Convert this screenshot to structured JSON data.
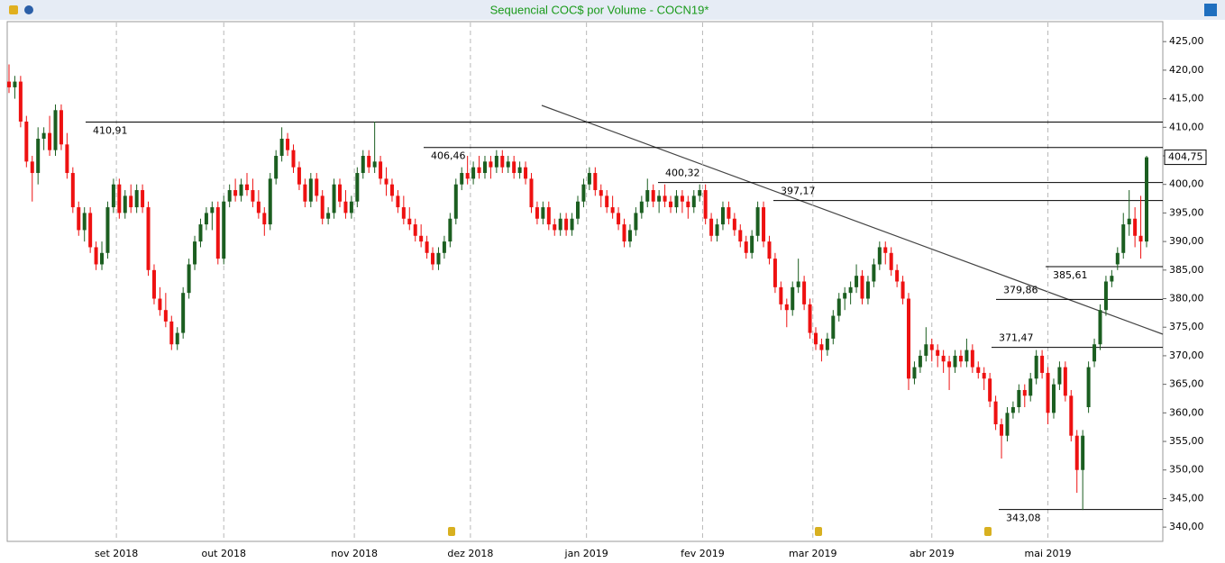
{
  "chart_data": {
    "type": "candlestick",
    "title": "Sequencial COC$ por Volume - COCN19*",
    "up_color": "#1b5e20",
    "down_color": "#ee1111",
    "ylim": [
      337.5,
      428.5
    ],
    "yticks": [
      {
        "value": 340,
        "label": "340,00"
      },
      {
        "value": 345,
        "label": "345,00"
      },
      {
        "value": 350,
        "label": "350,00"
      },
      {
        "value": 355,
        "label": "355,00"
      },
      {
        "value": 360,
        "label": "360,00"
      },
      {
        "value": 365,
        "label": "365,00"
      },
      {
        "value": 370,
        "label": "370,00"
      },
      {
        "value": 375,
        "label": "375,00"
      },
      {
        "value": 380,
        "label": "380,00"
      },
      {
        "value": 385,
        "label": "385,00"
      },
      {
        "value": 390,
        "label": "390,00"
      },
      {
        "value": 395,
        "label": "395,00"
      },
      {
        "value": 400,
        "label": "400,00"
      },
      {
        "value": 405,
        "label": "405,00"
      },
      {
        "value": 410,
        "label": "410,00"
      },
      {
        "value": 415,
        "label": "415,00"
      },
      {
        "value": 420,
        "label": "420,00"
      },
      {
        "value": 425,
        "label": "425,00"
      }
    ],
    "xticks": [
      {
        "value": 18.5,
        "label": "set 2018"
      },
      {
        "value": 37,
        "label": "out 2018"
      },
      {
        "value": 59.5,
        "label": "nov 2018"
      },
      {
        "value": 79.5,
        "label": "dez 2018"
      },
      {
        "value": 99.5,
        "label": "jan 2019"
      },
      {
        "value": 119.5,
        "label": "fev 2019"
      },
      {
        "value": 138.5,
        "label": "mar 2019"
      },
      {
        "value": 159,
        "label": "abr 2019"
      },
      {
        "value": 179,
        "label": "mai 2019"
      }
    ],
    "last_price": {
      "value": 404.75,
      "label": "404,75"
    },
    "levels": [
      {
        "value": 410.91,
        "label": "410,91"
      },
      {
        "value": 406.46,
        "label": "406,46"
      },
      {
        "value": 400.32,
        "label": "400,32"
      },
      {
        "value": 397.17,
        "label": "397,17"
      },
      {
        "value": 385.61,
        "label": "385,61"
      },
      {
        "value": 379.86,
        "label": "379,86"
      },
      {
        "value": 371.47,
        "label": "371,47"
      },
      {
        "value": 343.08,
        "label": "343,08"
      }
    ],
    "candles": [
      [
        418,
        421,
        416,
        417
      ],
      [
        417,
        419,
        415,
        418
      ],
      [
        418,
        419,
        410,
        411
      ],
      [
        411,
        412,
        403,
        404
      ],
      [
        404,
        405,
        397,
        402
      ],
      [
        402,
        410,
        400,
        408
      ],
      [
        408,
        410,
        406,
        409
      ],
      [
        409,
        412,
        405,
        406
      ],
      [
        406,
        414,
        405,
        413
      ],
      [
        413,
        414,
        406,
        407
      ],
      [
        407,
        409,
        401,
        402
      ],
      [
        402,
        403,
        395,
        396
      ],
      [
        396,
        397,
        391,
        392
      ],
      [
        392,
        396,
        390,
        395
      ],
      [
        395,
        396,
        388,
        389
      ],
      [
        389,
        390,
        385,
        386
      ],
      [
        386,
        390,
        385,
        388
      ],
      [
        388,
        397,
        387,
        396
      ],
      [
        396,
        401,
        395,
        400
      ],
      [
        400,
        401,
        394,
        395
      ],
      [
        395,
        399,
        394,
        398
      ],
      [
        398,
        400,
        395,
        396
      ],
      [
        396,
        400,
        395,
        399
      ],
      [
        399,
        400,
        395,
        396
      ],
      [
        396,
        397,
        384,
        385
      ],
      [
        385,
        386,
        379,
        380
      ],
      [
        380,
        382,
        377,
        378
      ],
      [
        378,
        381,
        375,
        376
      ],
      [
        376,
        377,
        371,
        372
      ],
      [
        372,
        375,
        371,
        374
      ],
      [
        374,
        382,
        373,
        381
      ],
      [
        381,
        387,
        380,
        386
      ],
      [
        386,
        391,
        385,
        390
      ],
      [
        390,
        394,
        389,
        393
      ],
      [
        393,
        396,
        392,
        395
      ],
      [
        395,
        397,
        392,
        396
      ],
      [
        396,
        397,
        386,
        387
      ],
      [
        387,
        398,
        386,
        397
      ],
      [
        397,
        400,
        396,
        399
      ],
      [
        399,
        401,
        397,
        398
      ],
      [
        398,
        401,
        397,
        400
      ],
      [
        400,
        402,
        398,
        399
      ],
      [
        399,
        401,
        396,
        397
      ],
      [
        397,
        399,
        394,
        395
      ],
      [
        395,
        396,
        391,
        393
      ],
      [
        393,
        402,
        392,
        401
      ],
      [
        401,
        406,
        400,
        405
      ],
      [
        405,
        410,
        404,
        408
      ],
      [
        408,
        409,
        405,
        406
      ],
      [
        406,
        407,
        402,
        403
      ],
      [
        403,
        404,
        399,
        400
      ],
      [
        400,
        401,
        396,
        397
      ],
      [
        397,
        402,
        396,
        401
      ],
      [
        401,
        402,
        397,
        398
      ],
      [
        398,
        399,
        393,
        394
      ],
      [
        394,
        396,
        393,
        395
      ],
      [
        395,
        401,
        394,
        400
      ],
      [
        400,
        401,
        396,
        397
      ],
      [
        397,
        399,
        394,
        395
      ],
      [
        395,
        398,
        394,
        397
      ],
      [
        397,
        403,
        396,
        402
      ],
      [
        402,
        406,
        401,
        405
      ],
      [
        405,
        406,
        402,
        403
      ],
      [
        403,
        411,
        402,
        404
      ],
      [
        404,
        405,
        400,
        401
      ],
      [
        401,
        403,
        398,
        400
      ],
      [
        400,
        401,
        397,
        398
      ],
      [
        398,
        399,
        395,
        396
      ],
      [
        396,
        398,
        393,
        394
      ],
      [
        394,
        396,
        392,
        393
      ],
      [
        393,
        394,
        390,
        391
      ],
      [
        391,
        393,
        389,
        390
      ],
      [
        390,
        391,
        387,
        388
      ],
      [
        388,
        389,
        385,
        386
      ],
      [
        386,
        389,
        385,
        388
      ],
      [
        388,
        391,
        387,
        390
      ],
      [
        390,
        395,
        389,
        394
      ],
      [
        394,
        401,
        393,
        400
      ],
      [
        400,
        403,
        399,
        402
      ],
      [
        402,
        405,
        400,
        401
      ],
      [
        401,
        404,
        400,
        403
      ],
      [
        403,
        405,
        401,
        402
      ],
      [
        402,
        405,
        401,
        404
      ],
      [
        404,
        405,
        401,
        403
      ],
      [
        403,
        406,
        402,
        405
      ],
      [
        405,
        406,
        402,
        403
      ],
      [
        403,
        405,
        402,
        404
      ],
      [
        404,
        405,
        401,
        402
      ],
      [
        402,
        404,
        401,
        403
      ],
      [
        403,
        404,
        400,
        401
      ],
      [
        401,
        402,
        395,
        396
      ],
      [
        396,
        397,
        393,
        394
      ],
      [
        394,
        397,
        393,
        396
      ],
      [
        396,
        397,
        392,
        393
      ],
      [
        393,
        394,
        391,
        392
      ],
      [
        392,
        395,
        391,
        394
      ],
      [
        394,
        395,
        391,
        392
      ],
      [
        392,
        395,
        391,
        394
      ],
      [
        394,
        398,
        393,
        397
      ],
      [
        397,
        401,
        396,
        400
      ],
      [
        400,
        403,
        399,
        402
      ],
      [
        402,
        403,
        398,
        399
      ],
      [
        399,
        400,
        396,
        398
      ],
      [
        398,
        399,
        395,
        396
      ],
      [
        396,
        398,
        394,
        395
      ],
      [
        395,
        396,
        392,
        393
      ],
      [
        393,
        394,
        389,
        390
      ],
      [
        390,
        393,
        389,
        392
      ],
      [
        392,
        396,
        391,
        395
      ],
      [
        395,
        398,
        394,
        397
      ],
      [
        397,
        401,
        396,
        399
      ],
      [
        399,
        400,
        396,
        397
      ],
      [
        397,
        399,
        395,
        398
      ],
      [
        398,
        400,
        396,
        397
      ],
      [
        397,
        398,
        395,
        396
      ],
      [
        396,
        399,
        395,
        398
      ],
      [
        398,
        399,
        395,
        397
      ],
      [
        397,
        398,
        394,
        396
      ],
      [
        396,
        399,
        395,
        398
      ],
      [
        398,
        400,
        397,
        399
      ],
      [
        399,
        400,
        393,
        394
      ],
      [
        394,
        395,
        390,
        391
      ],
      [
        391,
        394,
        390,
        393
      ],
      [
        393,
        397,
        392,
        396
      ],
      [
        396,
        397,
        393,
        394
      ],
      [
        394,
        395,
        391,
        392
      ],
      [
        392,
        393,
        389,
        390
      ],
      [
        390,
        391,
        387,
        388
      ],
      [
        388,
        392,
        387,
        391
      ],
      [
        391,
        397,
        390,
        396
      ],
      [
        396,
        397,
        389,
        390
      ],
      [
        390,
        391,
        386,
        387
      ],
      [
        387,
        388,
        381,
        382
      ],
      [
        382,
        383,
        378,
        379
      ],
      [
        379,
        380,
        375,
        378
      ],
      [
        378,
        383,
        377,
        382
      ],
      [
        382,
        387,
        381,
        383
      ],
      [
        383,
        384,
        378,
        379
      ],
      [
        379,
        380,
        373,
        374
      ],
      [
        374,
        375,
        371,
        372
      ],
      [
        372,
        373,
        369,
        371
      ],
      [
        371,
        374,
        370,
        373
      ],
      [
        373,
        378,
        372,
        377
      ],
      [
        377,
        381,
        376,
        380
      ],
      [
        380,
        382,
        378,
        381
      ],
      [
        381,
        383,
        379,
        382
      ],
      [
        382,
        386,
        381,
        384
      ],
      [
        384,
        385,
        379,
        380
      ],
      [
        380,
        384,
        379,
        383
      ],
      [
        383,
        387,
        382,
        386
      ],
      [
        386,
        390,
        385,
        389
      ],
      [
        389,
        390,
        386,
        388
      ],
      [
        388,
        389,
        384,
        385
      ],
      [
        385,
        386,
        382,
        383
      ],
      [
        383,
        384,
        379,
        380
      ],
      [
        380,
        381,
        364,
        366
      ],
      [
        366,
        369,
        365,
        368
      ],
      [
        368,
        371,
        367,
        370
      ],
      [
        370,
        375,
        369,
        372
      ],
      [
        372,
        373,
        369,
        371
      ],
      [
        371,
        372,
        368,
        370
      ],
      [
        370,
        371,
        367,
        369
      ],
      [
        369,
        370,
        364,
        368
      ],
      [
        368,
        371,
        367,
        370
      ],
      [
        370,
        371,
        368,
        369
      ],
      [
        369,
        373,
        368,
        371
      ],
      [
        371,
        372,
        367,
        368
      ],
      [
        368,
        369,
        366,
        367
      ],
      [
        367,
        368,
        364,
        366
      ],
      [
        366,
        367,
        361,
        362
      ],
      [
        362,
        363,
        357,
        358
      ],
      [
        358,
        359,
        352,
        356
      ],
      [
        356,
        361,
        355,
        360
      ],
      [
        360,
        362,
        359,
        361
      ],
      [
        361,
        365,
        360,
        364
      ],
      [
        364,
        365,
        361,
        363
      ],
      [
        363,
        367,
        362,
        366
      ],
      [
        366,
        371,
        365,
        370
      ],
      [
        370,
        371,
        366,
        367
      ],
      [
        367,
        368,
        358,
        360
      ],
      [
        360,
        366,
        359,
        365
      ],
      [
        365,
        369,
        364,
        368
      ],
      [
        368,
        369,
        362,
        363
      ],
      [
        363,
        364,
        355,
        356
      ],
      [
        356,
        357,
        346,
        350
      ],
      [
        350,
        357,
        343,
        356
      ],
      [
        361,
        369,
        360,
        368
      ],
      [
        369,
        373,
        368,
        372
      ],
      [
        372,
        379,
        371,
        378
      ],
      [
        378,
        384,
        377,
        383
      ],
      [
        383,
        385,
        382,
        384
      ],
      [
        386,
        389,
        385,
        388
      ],
      [
        388,
        395,
        387,
        393
      ],
      [
        393,
        399,
        391,
        394
      ],
      [
        394,
        396,
        389,
        391
      ],
      [
        391,
        398,
        387,
        390
      ],
      [
        390,
        405,
        389,
        404.75
      ]
    ]
  }
}
